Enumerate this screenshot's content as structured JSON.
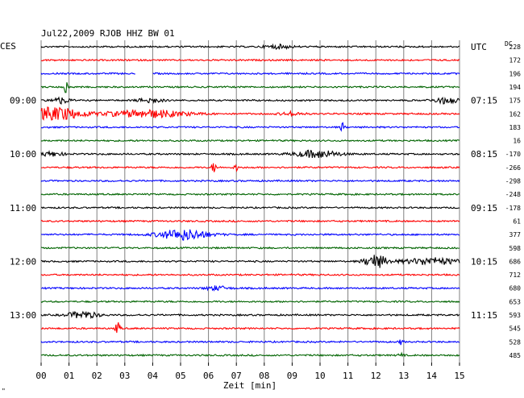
{
  "chart_data": {
    "type": "line",
    "title": "Jul22,2009  RJOB HHZ BW 01",
    "left_axis_label": "CES",
    "right_axis_label": "UTC",
    "dc_label": "DC",
    "xlabel": "Zeit [min]",
    "xlim": [
      0,
      15
    ],
    "x_ticks": [
      "00",
      "01",
      "02",
      "03",
      "04",
      "05",
      "06",
      "07",
      "08",
      "09",
      "10",
      "11",
      "12",
      "13",
      "14",
      "15"
    ],
    "left_time_labels": [
      {
        "trace": 4,
        "text": "09:00"
      },
      {
        "trace": 8,
        "text": "10:00"
      },
      {
        "trace": 12,
        "text": "11:00"
      },
      {
        "trace": 16,
        "text": "12:00"
      },
      {
        "trace": 20,
        "text": "13:00"
      }
    ],
    "right_time_labels": [
      {
        "trace": 0,
        "text": "UTC"
      },
      {
        "trace": 4,
        "text": "07:15"
      },
      {
        "trace": 8,
        "text": "08:15"
      },
      {
        "trace": 12,
        "text": "09:15"
      },
      {
        "trace": 16,
        "text": "10:15"
      },
      {
        "trace": 20,
        "text": "11:15"
      }
    ],
    "dc_offsets": [
      228,
      172,
      196,
      194,
      175,
      162,
      183,
      16,
      -170,
      -266,
      -298,
      -248,
      -178,
      61,
      377,
      598,
      686,
      712,
      680,
      653,
      593,
      545,
      528,
      485
    ],
    "color_cycle": [
      "#000000",
      "#ff0000",
      "#0000ff",
      "#006400"
    ],
    "trace_count": 24,
    "minutes_per_trace": 15,
    "gaps": [
      {
        "trace": 2,
        "from_min": 3.4,
        "to_min": 4.0
      }
    ],
    "events": [
      {
        "trace": 0,
        "t": 8.5,
        "amp": 0.9,
        "dur": 0.6
      },
      {
        "trace": 3,
        "t": 0.9,
        "amp": 3.0,
        "dur": 0.1
      },
      {
        "trace": 4,
        "t": 0.7,
        "amp": 1.5,
        "dur": 0.4
      },
      {
        "trace": 4,
        "t": 3.9,
        "amp": 1.2,
        "dur": 0.5
      },
      {
        "trace": 4,
        "t": 14.5,
        "amp": 1.4,
        "dur": 0.6
      },
      {
        "trace": 5,
        "t": 0.5,
        "amp": 3.2,
        "dur": 1.2
      },
      {
        "trace": 5,
        "t": 3.8,
        "amp": 1.8,
        "dur": 1.8
      },
      {
        "trace": 5,
        "t": 9.0,
        "amp": 0.8,
        "dur": 0.5
      },
      {
        "trace": 6,
        "t": 10.8,
        "amp": 2.0,
        "dur": 0.1
      },
      {
        "trace": 8,
        "t": 0.4,
        "amp": 1.0,
        "dur": 0.5
      },
      {
        "trace": 8,
        "t": 9.9,
        "amp": 1.8,
        "dur": 1.0
      },
      {
        "trace": 9,
        "t": 6.2,
        "amp": 2.6,
        "dur": 0.1
      },
      {
        "trace": 9,
        "t": 7.0,
        "amp": 1.6,
        "dur": 0.1
      },
      {
        "trace": 14,
        "t": 5.1,
        "amp": 2.6,
        "dur": 1.1
      },
      {
        "trace": 16,
        "t": 12.0,
        "amp": 3.2,
        "dur": 0.5
      },
      {
        "trace": 16,
        "t": 14.0,
        "amp": 1.6,
        "dur": 1.3
      },
      {
        "trace": 18,
        "t": 6.3,
        "amp": 1.0,
        "dur": 0.5
      },
      {
        "trace": 20,
        "t": 1.5,
        "amp": 1.6,
        "dur": 0.7
      },
      {
        "trace": 21,
        "t": 2.75,
        "amp": 3.2,
        "dur": 0.1
      },
      {
        "trace": 22,
        "t": 12.9,
        "amp": 1.2,
        "dur": 0.1
      },
      {
        "trace": 23,
        "t": 12.9,
        "amp": 1.2,
        "dur": 0.1
      }
    ],
    "footnote": "\""
  }
}
